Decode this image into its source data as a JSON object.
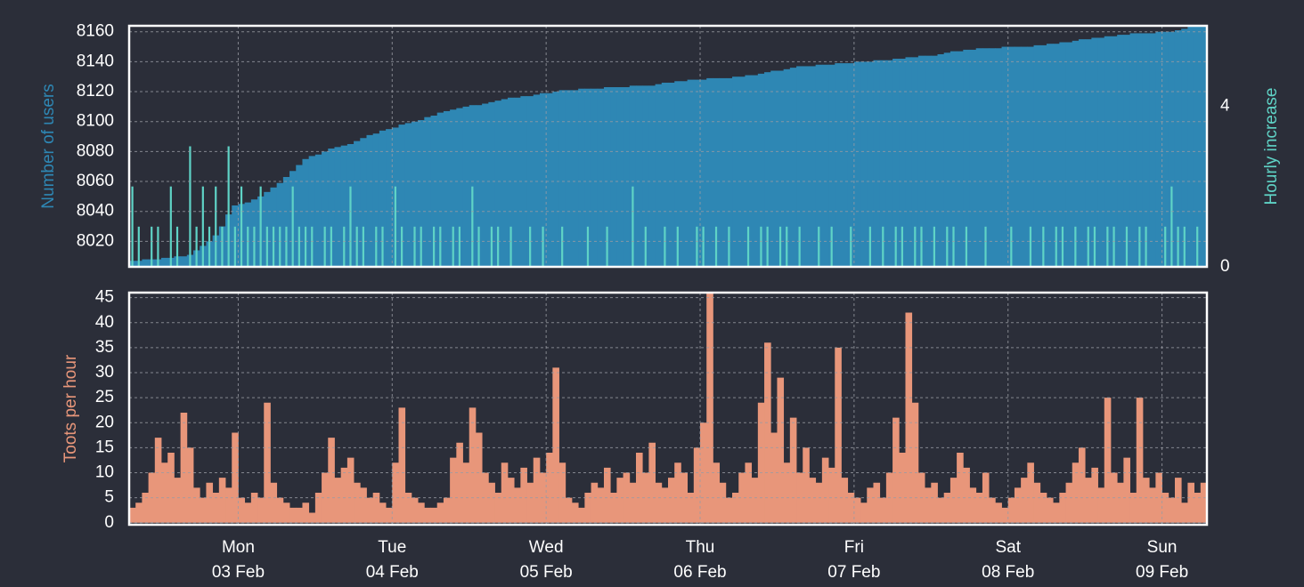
{
  "chart_data": [
    {
      "type": "bar",
      "series": [
        {
          "name": "Number of users",
          "color": "#2e87b4",
          "axis": "y",
          "values": [
            8007,
            8007,
            8008,
            8008,
            8008,
            8009,
            8009,
            8010,
            8010,
            8011,
            8014,
            8017,
            8020,
            8024,
            8030,
            8038,
            8044,
            8045,
            8046,
            8048,
            8050,
            8053,
            8056,
            8059,
            8063,
            8067,
            8071,
            8075,
            8077,
            8078,
            8080,
            8082,
            8083,
            8084,
            8085,
            8087,
            8089,
            8091,
            8092,
            8094,
            8095,
            8096,
            8098,
            8099,
            8100,
            8101,
            8103,
            8104,
            8106,
            8107,
            8108,
            8109,
            8110,
            8111,
            8111,
            8112,
            8113,
            8114,
            8115,
            8116,
            8116,
            8117,
            8117,
            8118,
            8119,
            8119,
            8120,
            8121,
            8121,
            8121,
            8122,
            8122,
            8122,
            8122,
            8123,
            8123,
            8123,
            8123,
            8124,
            8124,
            8124,
            8124,
            8125,
            8126,
            8126,
            8127,
            8127,
            8128,
            8128,
            8128,
            8129,
            8129,
            8129,
            8129,
            8130,
            8130,
            8131,
            8131,
            8132,
            8133,
            8134,
            8134,
            8135,
            8136,
            8137,
            8137,
            8137,
            8138,
            8138,
            8138,
            8139,
            8139,
            8139,
            8140,
            8140,
            8140,
            8141,
            8141,
            8141,
            8142,
            8142,
            8143,
            8143,
            8144,
            8144,
            8144,
            8145,
            8146,
            8147,
            8147,
            8148,
            8148,
            8149,
            8149,
            8149,
            8149,
            8150,
            8150,
            8150,
            8150,
            8150,
            8151,
            8151,
            8152,
            8152,
            8153,
            8153,
            8154,
            8155,
            8155,
            8156,
            8156,
            8157,
            8157,
            8158,
            8158,
            8159,
            8159,
            8159,
            8159,
            8160,
            8160,
            8160,
            8161,
            8162,
            8164,
            8164,
            8164
          ]
        },
        {
          "name": "Hourly increase",
          "color": "#5fd3c6",
          "axis": "y2",
          "values": [
            2,
            1,
            0,
            1,
            1,
            0,
            2,
            1,
            0,
            3,
            1,
            2,
            1,
            2,
            1,
            3,
            1,
            2,
            1,
            1,
            2,
            1,
            1,
            1,
            1,
            2,
            1,
            1,
            1,
            0,
            1,
            1,
            0,
            1,
            2,
            1,
            1,
            0,
            1,
            1,
            0,
            2,
            1,
            0,
            1,
            1,
            0,
            1,
            1,
            0,
            1,
            1,
            0,
            2,
            1,
            0,
            1,
            1,
            0,
            1,
            0,
            0,
            1,
            0,
            1,
            0,
            0,
            1,
            0,
            0,
            0,
            1,
            0,
            0,
            1,
            0,
            0,
            0,
            2,
            0,
            1,
            0,
            0,
            1,
            0,
            1,
            0,
            0,
            1,
            1,
            0,
            1,
            0,
            1,
            0,
            0,
            1,
            0,
            1,
            1,
            0,
            1,
            1,
            0,
            1,
            0,
            0,
            1,
            0,
            1,
            0,
            0,
            1,
            0,
            0,
            1,
            0,
            1,
            0,
            1,
            1,
            0,
            1,
            1,
            0,
            1,
            0,
            1,
            1,
            0,
            1,
            0,
            0,
            1,
            0,
            0,
            0,
            1,
            0,
            0,
            1,
            0,
            1,
            0,
            1,
            1,
            0,
            1,
            0,
            1,
            1,
            0,
            1,
            1,
            0,
            1,
            0,
            1,
            1,
            0,
            0,
            1,
            2,
            1,
            1,
            0,
            1,
            0
          ]
        }
      ],
      "xlim": [
        0,
        168
      ],
      "xticks": [
        17,
        41,
        65,
        89,
        113,
        137,
        161
      ],
      "ylim": [
        8003,
        8164
      ],
      "yticks": [
        8020,
        8040,
        8060,
        8080,
        8100,
        8120,
        8140,
        8160
      ],
      "y2lim": [
        0,
        6
      ],
      "y2ticks": [
        0,
        4
      ],
      "grid": true
    },
    {
      "type": "bar",
      "series": [
        {
          "name": "Toots per hour",
          "color": "#e8967a",
          "values": [
            3,
            4,
            6,
            10,
            17,
            12,
            14,
            9,
            22,
            15,
            7,
            5,
            8,
            6,
            9,
            7,
            18,
            5,
            4,
            6,
            5,
            24,
            8,
            5,
            4,
            3,
            3,
            4,
            2,
            6,
            10,
            17,
            9,
            11,
            13,
            8,
            7,
            5,
            6,
            4,
            3,
            12,
            23,
            6,
            5,
            4,
            3,
            3,
            4,
            5,
            13,
            16,
            12,
            23,
            18,
            10,
            8,
            6,
            12,
            9,
            7,
            11,
            8,
            13,
            10,
            14,
            31,
            12,
            5,
            4,
            3,
            6,
            8,
            7,
            11,
            6,
            9,
            10,
            8,
            14,
            10,
            16,
            8,
            7,
            9,
            12,
            10,
            6,
            15,
            20,
            46,
            12,
            8,
            5,
            6,
            10,
            12,
            9,
            24,
            36,
            18,
            29,
            12,
            21,
            10,
            15,
            9,
            8,
            13,
            11,
            35,
            9,
            6,
            5,
            4,
            7,
            8,
            5,
            10,
            21,
            14,
            42,
            24,
            10,
            7,
            8,
            5,
            6,
            9,
            14,
            11,
            7,
            6,
            10,
            5,
            4,
            3,
            5,
            7,
            9,
            12,
            8,
            6,
            5,
            4,
            6,
            8,
            12,
            15,
            9,
            11,
            7,
            25,
            10,
            8,
            13,
            6,
            25,
            9,
            7,
            10,
            6,
            5,
            9,
            4,
            8,
            6,
            8
          ]
        }
      ],
      "xlim": [
        0,
        168
      ],
      "xticks": [
        {
          "value": 17,
          "label": [
            "Mon",
            "03 Feb"
          ]
        },
        {
          "value": 41,
          "label": [
            "Tue",
            "04 Feb"
          ]
        },
        {
          "value": 65,
          "label": [
            "Wed",
            "05 Feb"
          ]
        },
        {
          "value": 89,
          "label": [
            "Thu",
            "06 Feb"
          ]
        },
        {
          "value": 113,
          "label": [
            "Fri",
            "07 Feb"
          ]
        },
        {
          "value": 137,
          "label": [
            "Sat",
            "08 Feb"
          ]
        },
        {
          "value": 161,
          "label": [
            "Sun",
            "09 Feb"
          ]
        }
      ],
      "ylim": [
        -0.4,
        46
      ],
      "yticks": [
        0,
        5,
        10,
        15,
        20,
        25,
        30,
        35,
        40,
        45
      ],
      "grid": true
    }
  ]
}
